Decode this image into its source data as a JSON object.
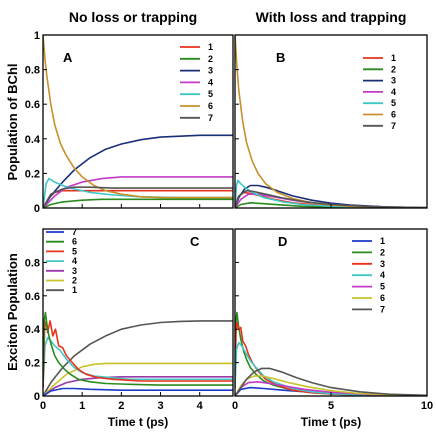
{
  "figure": {
    "col_titles": [
      "No loss or trapping",
      "With loss and trapping"
    ],
    "row_labels": [
      "Population of BChl",
      "Exciton Population"
    ]
  },
  "chart_data": [
    {
      "id": "A",
      "type": "line",
      "letter": "A",
      "xlim": [
        0,
        4.85
      ],
      "ylim": [
        0,
        1
      ],
      "xticks": [],
      "yticks": [
        {
          "v": 0,
          "t": "0"
        },
        {
          "v": 0.2,
          "t": "0.2"
        },
        {
          "v": 0.4,
          "t": "0.4"
        },
        {
          "v": 0.6,
          "t": "0.6"
        },
        {
          "v": 0.8,
          "t": "0.8"
        },
        {
          "v": 1,
          "t": "1"
        }
      ],
      "xlabel": "",
      "legend_order": [
        "1",
        "2",
        "3",
        "4",
        "5",
        "6",
        "7"
      ],
      "series": [
        {
          "name": "1",
          "color": "#e8321e",
          "x": [
            0,
            0.15,
            0.3,
            0.5,
            0.8,
            1.2,
            1.8,
            2.5,
            3.5,
            4.85
          ],
          "y": [
            0,
            0.06,
            0.09,
            0.1,
            0.1,
            0.1,
            0.1,
            0.1,
            0.1,
            0.1
          ]
        },
        {
          "name": "2",
          "color": "#2a8a1e",
          "x": [
            0,
            0.2,
            0.5,
            1,
            1.5,
            2,
            3,
            4,
            4.85
          ],
          "y": [
            0,
            0.02,
            0.035,
            0.045,
            0.05,
            0.05,
            0.05,
            0.05,
            0.05
          ]
        },
        {
          "name": "3",
          "color": "#1a2f78",
          "x": [
            0,
            0.2,
            0.5,
            0.8,
            1.2,
            1.6,
            2,
            2.5,
            3,
            3.5,
            4,
            4.5,
            4.85
          ],
          "y": [
            0,
            0.07,
            0.15,
            0.22,
            0.29,
            0.34,
            0.37,
            0.395,
            0.41,
            0.415,
            0.42,
            0.42,
            0.42
          ]
        },
        {
          "name": "4",
          "color": "#c23ac8",
          "x": [
            0,
            0.3,
            0.6,
            1,
            1.5,
            2,
            3,
            4,
            4.85
          ],
          "y": [
            0,
            0.07,
            0.12,
            0.15,
            0.17,
            0.18,
            0.18,
            0.18,
            0.18
          ]
        },
        {
          "name": "5",
          "color": "#3fc6c6",
          "x": [
            0,
            0.08,
            0.15,
            0.3,
            0.5,
            0.8,
            1.2,
            1.8,
            2.5,
            3.5,
            4.85
          ],
          "y": [
            0,
            0.14,
            0.17,
            0.15,
            0.13,
            0.11,
            0.09,
            0.075,
            0.065,
            0.06,
            0.06
          ]
        },
        {
          "name": "6",
          "color": "#c8902a",
          "x": [
            0,
            0.05,
            0.1,
            0.2,
            0.3,
            0.45,
            0.6,
            0.8,
            1.0,
            1.3,
            1.6,
            2.0,
            2.5,
            3.0,
            3.5,
            4.0,
            4.85
          ],
          "y": [
            1,
            0.86,
            0.76,
            0.6,
            0.48,
            0.37,
            0.3,
            0.23,
            0.18,
            0.13,
            0.1,
            0.08,
            0.065,
            0.06,
            0.06,
            0.06,
            0.06
          ]
        },
        {
          "name": "7",
          "color": "#555555",
          "x": [
            0,
            0.2,
            0.5,
            0.8,
            1.2,
            1.8,
            2.5,
            3.5,
            4.85
          ],
          "y": [
            0,
            0.08,
            0.11,
            0.12,
            0.12,
            0.115,
            0.115,
            0.115,
            0.115
          ]
        }
      ]
    },
    {
      "id": "B",
      "type": "line",
      "letter": "B",
      "xlim": [
        0,
        10
      ],
      "ylim": [
        0,
        1
      ],
      "xticks": [],
      "yticks": [],
      "xlabel": "",
      "legend_order": [
        "1",
        "2",
        "3",
        "4",
        "5",
        "6",
        "7"
      ],
      "series": [
        {
          "name": "1",
          "color": "#e8321e",
          "x": [
            0,
            0.15,
            0.4,
            0.8,
            1.3,
            2,
            3,
            4,
            5,
            6,
            8,
            10
          ],
          "y": [
            0,
            0.06,
            0.09,
            0.085,
            0.07,
            0.05,
            0.03,
            0.02,
            0.012,
            0.007,
            0.003,
            0.001
          ]
        },
        {
          "name": "2",
          "color": "#2a8a1e",
          "x": [
            0,
            0.3,
            0.8,
            1.5,
            2.5,
            3.5,
            5,
            7,
            10
          ],
          "y": [
            0,
            0.02,
            0.03,
            0.025,
            0.017,
            0.01,
            0.006,
            0.002,
            0.001
          ]
        },
        {
          "name": "3",
          "color": "#1a2f78",
          "x": [
            0,
            0.2,
            0.5,
            0.8,
            1.2,
            1.6,
            2.2,
            3,
            4,
            5,
            6,
            8,
            10
          ],
          "y": [
            0,
            0.06,
            0.11,
            0.13,
            0.13,
            0.12,
            0.1,
            0.07,
            0.045,
            0.028,
            0.017,
            0.006,
            0.002
          ]
        },
        {
          "name": "4",
          "color": "#c23ac8",
          "x": [
            0,
            0.3,
            0.7,
            1.2,
            2,
            3,
            4,
            5,
            6,
            8,
            10
          ],
          "y": [
            0,
            0.05,
            0.08,
            0.08,
            0.065,
            0.045,
            0.03,
            0.02,
            0.012,
            0.005,
            0.002
          ]
        },
        {
          "name": "5",
          "color": "#3fc6c6",
          "x": [
            0,
            0.08,
            0.15,
            0.3,
            0.5,
            0.9,
            1.5,
            2.5,
            3.5,
            5,
            7,
            10
          ],
          "y": [
            0,
            0.13,
            0.16,
            0.14,
            0.12,
            0.09,
            0.06,
            0.035,
            0.02,
            0.01,
            0.004,
            0.001
          ]
        },
        {
          "name": "6",
          "color": "#c8902a",
          "x": [
            0,
            0.1,
            0.2,
            0.4,
            0.6,
            0.9,
            1.2,
            1.6,
            2.2,
            3,
            4,
            5,
            6,
            8,
            10
          ],
          "y": [
            1,
            0.82,
            0.68,
            0.5,
            0.38,
            0.27,
            0.2,
            0.14,
            0.09,
            0.055,
            0.03,
            0.017,
            0.01,
            0.004,
            0.001
          ]
        },
        {
          "name": "7",
          "color": "#555555",
          "x": [
            0,
            0.2,
            0.6,
            1,
            1.6,
            2.4,
            3.5,
            5,
            7,
            10
          ],
          "y": [
            0,
            0.07,
            0.1,
            0.095,
            0.08,
            0.06,
            0.038,
            0.02,
            0.008,
            0.002
          ]
        }
      ]
    },
    {
      "id": "C",
      "type": "line",
      "letter": "C",
      "xlim": [
        0,
        4.85
      ],
      "ylim": [
        0,
        1
      ],
      "xticks": [
        {
          "v": 0,
          "t": "0"
        },
        {
          "v": 1,
          "t": "1"
        },
        {
          "v": 2,
          "t": "2"
        },
        {
          "v": 3,
          "t": "3"
        },
        {
          "v": 4,
          "t": "4"
        }
      ],
      "yticks": [
        {
          "v": 0,
          "t": "0"
        },
        {
          "v": 0.2,
          "t": "0.2"
        },
        {
          "v": 0.4,
          "t": "0.4"
        },
        {
          "v": 0.6,
          "t": "0.6"
        },
        {
          "v": 0.8,
          "t": "0.8"
        }
      ],
      "xlabel": "Time t (ps)",
      "legend_order": [
        "7",
        "6",
        "5",
        "4",
        "3",
        "2",
        "1"
      ],
      "series": [
        {
          "name": "1",
          "color": "#555555",
          "x": [
            0,
            0.2,
            0.5,
            0.8,
            1.2,
            1.6,
            2,
            2.5,
            3,
            3.5,
            4,
            4.5,
            4.85
          ],
          "y": [
            0,
            0.08,
            0.17,
            0.24,
            0.31,
            0.36,
            0.4,
            0.425,
            0.44,
            0.447,
            0.45,
            0.45,
            0.45
          ]
        },
        {
          "name": "2",
          "color": "#c8c22a",
          "x": [
            0,
            0.3,
            0.6,
            1,
            1.3,
            1.6,
            2,
            3,
            4,
            4.85
          ],
          "y": [
            0,
            0.07,
            0.13,
            0.175,
            0.19,
            0.195,
            0.195,
            0.195,
            0.195,
            0.195
          ]
        },
        {
          "name": "3",
          "color": "#9a3aa8",
          "x": [
            0,
            0.3,
            0.6,
            1,
            1.5,
            2,
            3,
            4,
            4.85
          ],
          "y": [
            0,
            0.05,
            0.08,
            0.1,
            0.11,
            0.115,
            0.115,
            0.115,
            0.115
          ]
        },
        {
          "name": "4",
          "color": "#3fc6c6",
          "x": [
            0,
            0.05,
            0.12,
            0.2,
            0.3,
            0.45,
            0.6,
            0.8,
            1.0,
            1.3,
            1.7,
            2.2,
            3,
            4,
            4.85
          ],
          "y": [
            0.05,
            0.3,
            0.35,
            0.33,
            0.3,
            0.27,
            0.22,
            0.17,
            0.14,
            0.12,
            0.11,
            0.1,
            0.1,
            0.1,
            0.1
          ]
        },
        {
          "name": "5",
          "color": "#e8321e",
          "x": [
            0,
            0.04,
            0.08,
            0.12,
            0.18,
            0.25,
            0.32,
            0.4,
            0.5,
            0.6,
            0.75,
            0.9,
            1.1,
            1.4,
            1.8,
            2.5,
            3.5,
            4.85
          ],
          "y": [
            0.05,
            0.4,
            0.45,
            0.38,
            0.45,
            0.36,
            0.4,
            0.3,
            0.29,
            0.24,
            0.2,
            0.16,
            0.13,
            0.11,
            0.1,
            0.09,
            0.09,
            0.09
          ]
        },
        {
          "name": "6",
          "color": "#2a8a1e",
          "x": [
            0,
            0.03,
            0.06,
            0.1,
            0.15,
            0.22,
            0.3,
            0.4,
            0.55,
            0.7,
            0.9,
            1.2,
            1.6,
            2.2,
            3,
            4,
            4.85
          ],
          "y": [
            0.1,
            0.45,
            0.5,
            0.43,
            0.36,
            0.3,
            0.24,
            0.2,
            0.16,
            0.13,
            0.1,
            0.085,
            0.075,
            0.07,
            0.065,
            0.065,
            0.065
          ]
        },
        {
          "name": "7",
          "color": "#1a3ac8",
          "x": [
            0,
            0.2,
            0.5,
            0.8,
            1.2,
            2,
            3,
            4,
            4.85
          ],
          "y": [
            0,
            0.03,
            0.045,
            0.045,
            0.04,
            0.035,
            0.035,
            0.035,
            0.035
          ]
        }
      ]
    },
    {
      "id": "D",
      "type": "line",
      "letter": "D",
      "xlim": [
        0,
        10
      ],
      "ylim": [
        0,
        1
      ],
      "xticks": [
        {
          "v": 0,
          "t": "0"
        },
        {
          "v": 5,
          "t": "5"
        },
        {
          "v": 10,
          "t": "10"
        }
      ],
      "yticks": [],
      "xlabel": "Time t (ps)",
      "legend_order": [
        "1",
        "2",
        "3",
        "4",
        "5",
        "6",
        "7"
      ],
      "series": [
        {
          "name": "1",
          "color": "#1a3ac8",
          "x": [
            0,
            0.3,
            0.8,
            1.5,
            2.5,
            4,
            6,
            8,
            10
          ],
          "y": [
            0,
            0.04,
            0.05,
            0.045,
            0.035,
            0.022,
            0.012,
            0.006,
            0.003
          ]
        },
        {
          "name": "2",
          "color": "#2a8a1e",
          "x": [
            0,
            0.05,
            0.1,
            0.18,
            0.3,
            0.45,
            0.6,
            0.8,
            1.1,
            1.5,
            2,
            3,
            4,
            5,
            7,
            10
          ],
          "y": [
            0.1,
            0.45,
            0.5,
            0.42,
            0.34,
            0.27,
            0.22,
            0.17,
            0.13,
            0.09,
            0.065,
            0.035,
            0.02,
            0.012,
            0.004,
            0.001
          ]
        },
        {
          "name": "3",
          "color": "#e8321e",
          "x": [
            0,
            0.05,
            0.1,
            0.2,
            0.3,
            0.4,
            0.55,
            0.7,
            0.9,
            1.2,
            1.6,
            2.2,
            3,
            4,
            5,
            7,
            10
          ],
          "y": [
            0.05,
            0.38,
            0.44,
            0.4,
            0.41,
            0.33,
            0.3,
            0.25,
            0.2,
            0.15,
            0.1,
            0.065,
            0.035,
            0.02,
            0.012,
            0.004,
            0.001
          ]
        },
        {
          "name": "4",
          "color": "#3fc6c6",
          "x": [
            0,
            0.08,
            0.2,
            0.35,
            0.55,
            0.8,
            1.1,
            1.5,
            2,
            3,
            4,
            5,
            7,
            10
          ],
          "y": [
            0.05,
            0.28,
            0.32,
            0.3,
            0.26,
            0.21,
            0.17,
            0.12,
            0.085,
            0.045,
            0.025,
            0.014,
            0.005,
            0.001
          ]
        },
        {
          "name": "5",
          "color": "#c23ac8",
          "x": [
            0,
            0.3,
            0.7,
            1.2,
            1.8,
            2.6,
            3.6,
            5,
            7,
            10
          ],
          "y": [
            0,
            0.05,
            0.08,
            0.085,
            0.075,
            0.06,
            0.04,
            0.022,
            0.009,
            0.002
          ]
        },
        {
          "name": "6",
          "color": "#c8c22a",
          "x": [
            0,
            0.3,
            0.6,
            1,
            1.4,
            2,
            2.8,
            3.8,
            5,
            6.5,
            8,
            10
          ],
          "y": [
            0,
            0.06,
            0.1,
            0.12,
            0.12,
            0.105,
            0.08,
            0.055,
            0.032,
            0.015,
            0.007,
            0.002
          ]
        },
        {
          "name": "7",
          "color": "#555555",
          "x": [
            0,
            0.3,
            0.6,
            1,
            1.4,
            1.8,
            2.4,
            3.2,
            4,
            5,
            6.5,
            8,
            10
          ],
          "y": [
            0,
            0.05,
            0.1,
            0.145,
            0.165,
            0.165,
            0.145,
            0.11,
            0.08,
            0.05,
            0.025,
            0.011,
            0.004
          ]
        }
      ]
    }
  ]
}
